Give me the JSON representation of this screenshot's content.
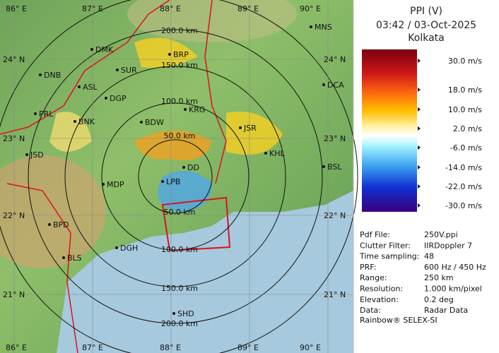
{
  "map": {
    "lon_labels": [
      "86° E",
      "87° E",
      "88° E",
      "89° E",
      "90° E"
    ],
    "lat_labels": [
      "24° N",
      "23° N",
      "22° N",
      "21° N"
    ],
    "range_labels": [
      "50.0 km",
      "100.0 km",
      "150.0 km",
      "200.0 km"
    ],
    "cities": [
      "MNS",
      "DMK",
      "BRP",
      "DNB",
      "SUR",
      "ASL",
      "DCA",
      "DGP",
      "KRG",
      "PRL",
      "BNK",
      "BDW",
      "JSR",
      "KHL",
      "JSD",
      "BSL",
      "DD",
      "LPB",
      "MDP",
      "BPD",
      "DGH",
      "BLS",
      "SHD"
    ]
  },
  "panel": {
    "title": "PPI (V)",
    "datetime": "03:42 / 03-Oct-2025",
    "station": "Kolkata",
    "legend_labels": [
      "30.0 m/s",
      "18.0 m/s",
      "10.0 m/s",
      "2.0 m/s",
      "-6.0 m/s",
      "-14.0 m/s",
      "-22.0 m/s",
      "-30.0 m/s"
    ],
    "info": [
      [
        "Pdf File:",
        "250V.ppi"
      ],
      [
        "Clutter Filter:",
        "IIRDoppler 7"
      ],
      [
        "Time sampling:",
        "48"
      ],
      [
        "PRF:",
        "600 Hz / 450 Hz"
      ],
      [
        "Range:",
        "250 km"
      ],
      [
        "Resolution:",
        "1.000 km/pixel"
      ],
      [
        "Elevation:",
        "0.2 deg"
      ],
      [
        "Data:",
        "Radar Data"
      ]
    ],
    "footer": "Rainbow® SELEX-SI"
  }
}
